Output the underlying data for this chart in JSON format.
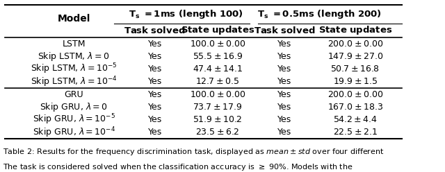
{
  "title": "Table 2: Results for the frequency discrimination task, displayed as $mean \\pm std$ over four different",
  "col_headers_row1": [
    "Model",
    "T$_s$ = 1ms (length 100)",
    "",
    "T$_s$ = 0.5ms (length 200)",
    ""
  ],
  "col_headers_row2": [
    "",
    "Task solved",
    "State updates",
    "Task solved",
    "State updates"
  ],
  "rows": [
    [
      "LSTM",
      "Yes",
      "$100.0 \\pm 0.00$",
      "Yes",
      "$200.0 \\pm 0.00$"
    ],
    [
      "Skip LSTM, $\\lambda = 0$",
      "Yes",
      "$55.5 \\pm 16.9$",
      "Yes",
      "$147.9 \\pm 27.0$"
    ],
    [
      "Skip LSTM, $\\lambda = 10^{-5}$",
      "Yes",
      "$47.4 \\pm 14.1$",
      "Yes",
      "$50.7 \\pm 16.8$"
    ],
    [
      "Skip LSTM, $\\lambda = 10^{-4}$",
      "Yes",
      "$12.7 \\pm 0.5$",
      "Yes",
      "$19.9 \\pm 1.5$"
    ],
    [
      "GRU",
      "Yes",
      "$100.0 \\pm 0.00$",
      "Yes",
      "$200.0 \\pm 0.00$"
    ],
    [
      "Skip GRU, $\\lambda = 0$",
      "Yes",
      "$73.7 \\pm 17.9$",
      "Yes",
      "$167.0 \\pm 18.3$"
    ],
    [
      "Skip GRU, $\\lambda = 10^{-5}$",
      "Yes",
      "$51.9 \\pm 10.2$",
      "Yes",
      "$54.2 \\pm 4.4$"
    ],
    [
      "Skip GRU, $\\lambda = 10^{-4}$",
      "Yes",
      "$23.5 \\pm 6.2$",
      "Yes",
      "$22.5 \\pm 2.1$"
    ]
  ],
  "group_separators": [
    4
  ],
  "background_color": "#ffffff",
  "font_size": 9.5
}
